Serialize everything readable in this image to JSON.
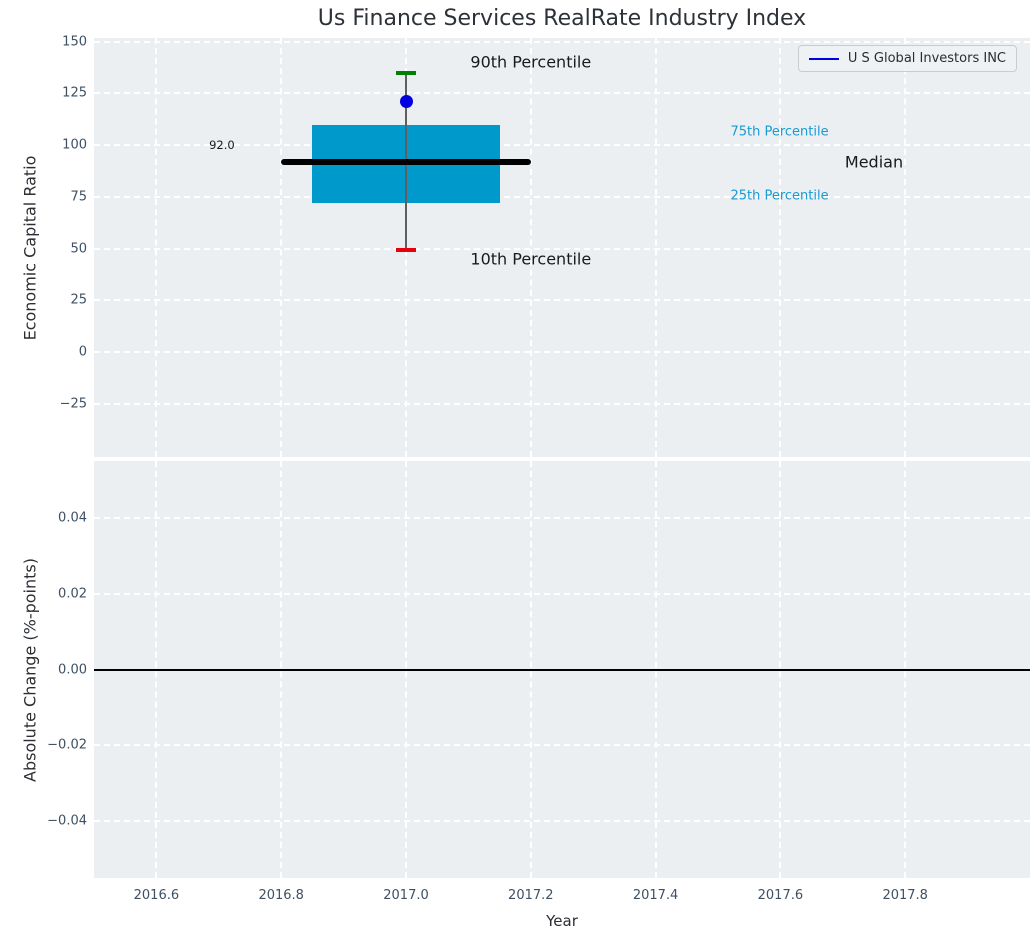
{
  "title": "Us Finance Services RealRate Industry Index",
  "xlabel": "Year",
  "legend": {
    "label": "U S Global Investors INC"
  },
  "colors": {
    "plot_bg": "#eceff1",
    "grid": "#ffffff",
    "title": "#2d3238",
    "tick": "#3e5063",
    "axis_label": "#2b2f33",
    "box_fill": "#0099cc",
    "median_line": "#000000",
    "whisker": "#5f5f5f",
    "cap_high": "#008000",
    "cap_low": "#e8000b",
    "point": "#0000e0",
    "percentile_label": "#189ad3",
    "annotation": "#1a1a1a",
    "zero_line": "#000000",
    "legend_line": "#0000e0"
  },
  "chart_data": [
    {
      "type": "boxplot",
      "title": "Us Finance Services RealRate Industry Index",
      "ylabel": "Economic Capital Ratio",
      "xlim": [
        2016.5,
        2018.0
      ],
      "ylim": [
        -50.6,
        151.8
      ],
      "grid": "white-dashed",
      "xticklabels_visible": false,
      "xticks": {
        "values": [
          2016.6,
          2016.8,
          2017.0,
          2017.2,
          2017.4,
          2017.6,
          2017.8
        ],
        "labels": [
          "2016.6",
          "2016.8",
          "2017.0",
          "2017.2",
          "2017.4",
          "2017.6",
          "2017.8"
        ]
      },
      "yticks": {
        "values": [
          150,
          125,
          100,
          75,
          50,
          25,
          0,
          -25
        ],
        "labels": [
          "150",
          "125",
          "100",
          "75",
          "50",
          "25",
          "0",
          "−25"
        ]
      },
      "box": {
        "x": 2017.0,
        "p10": 49.5,
        "p25": 72,
        "median": 92.0,
        "p75": 110,
        "p90": 135,
        "box_half_width": 0.15,
        "median_half_width": 0.2,
        "cap_half_width": 0.016
      },
      "company_point": {
        "x": 2017.0,
        "y": 121,
        "name": "U S Global Investors INC"
      },
      "annotations": [
        {
          "text": "90th Percentile",
          "x": 2017.2,
          "y": 140,
          "size": 16,
          "color_key": "annotation",
          "align": "center"
        },
        {
          "text": "10th Percentile",
          "x": 2017.2,
          "y": 45,
          "size": 16,
          "color_key": "annotation",
          "align": "center"
        },
        {
          "text": "75th Percentile",
          "x": 2017.52,
          "y": 106.5,
          "size": 13,
          "color_key": "percentile_label",
          "align": "left"
        },
        {
          "text": "25th Percentile",
          "x": 2017.52,
          "y": 75.5,
          "size": 13,
          "color_key": "percentile_label",
          "align": "left"
        },
        {
          "text": "Median",
          "x": 2017.75,
          "y": 92,
          "size": 16,
          "color_key": "annotation",
          "align": "center"
        },
        {
          "text": "92.0",
          "x": 2016.705,
          "y": 100,
          "size": 11.5,
          "color_key": "annotation",
          "align": "center"
        }
      ],
      "legend_position": "upper right"
    },
    {
      "type": "line",
      "ylabel": "Absolute Change (%-points)",
      "xlabel": "Year",
      "xlim": [
        2016.5,
        2018.0
      ],
      "ylim": [
        -0.055,
        0.055
      ],
      "grid": "white-dashed",
      "xticklabels_visible": true,
      "xticks": {
        "values": [
          2016.6,
          2016.8,
          2017.0,
          2017.2,
          2017.4,
          2017.6,
          2017.8
        ],
        "labels": [
          "2016.6",
          "2016.8",
          "2017.0",
          "2017.2",
          "2017.4",
          "2017.6",
          "2017.8"
        ]
      },
      "yticks": {
        "values": [
          0.04,
          0.02,
          0,
          -0.02,
          -0.04
        ],
        "labels": [
          "0.04",
          "0.02",
          "0.00",
          "−0.02",
          "−0.04"
        ]
      },
      "zero_line_y": 0.0
    }
  ]
}
